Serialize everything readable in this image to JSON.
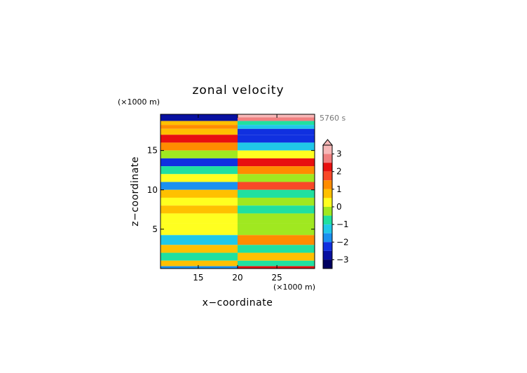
{
  "chart_data": {
    "type": "heatmap",
    "title": "zonal velocity",
    "xlabel": "x−coordinate",
    "ylabel": "z−coordinate",
    "x_unit_label": "(×1000 m)",
    "y_unit_label": "(×1000 m)",
    "time_label": "5760 s",
    "xlim": [
      10.2,
      29.8
    ],
    "ylim": [
      0,
      19.6
    ],
    "x_ticks": [
      15,
      20,
      25
    ],
    "y_ticks": [
      5,
      10,
      15
    ],
    "x_tick_labels": [
      "15",
      "20",
      "25"
    ],
    "y_tick_labels": [
      "5",
      "10",
      "15"
    ],
    "colorbar": {
      "tick_labels": [
        "3",
        "2",
        "1",
        "0",
        "−1",
        "−2",
        "−3"
      ],
      "tick_values": [
        3,
        2,
        1,
        0,
        -1,
        -2,
        -3
      ],
      "range": [
        -3.5,
        3.5
      ],
      "levels": [
        {
          "min": 3.0,
          "max": 3.5,
          "color": "#f7b8b8"
        },
        {
          "min": 2.5,
          "max": 3.0,
          "color": "#f08080"
        },
        {
          "min": 2.0,
          "max": 2.5,
          "color": "#e81010"
        },
        {
          "min": 1.5,
          "max": 2.0,
          "color": "#f84828"
        },
        {
          "min": 1.0,
          "max": 1.5,
          "color": "#ff8c00"
        },
        {
          "min": 0.5,
          "max": 1.0,
          "color": "#ffc000"
        },
        {
          "min": 0.0,
          "max": 0.5,
          "color": "#ffff20"
        },
        {
          "min": -0.5,
          "max": 0.0,
          "color": "#a0e820"
        },
        {
          "min": -1.0,
          "max": -0.5,
          "color": "#20e0a0"
        },
        {
          "min": -1.5,
          "max": -1.0,
          "color": "#20c8e8"
        },
        {
          "min": -2.0,
          "max": -1.5,
          "color": "#1a90f0"
        },
        {
          "min": -2.5,
          "max": -2.0,
          "color": "#1030e0"
        },
        {
          "min": -3.0,
          "max": -2.5,
          "color": "#0810a0"
        },
        {
          "min": -3.5,
          "max": -3.0,
          "color": "#000060"
        }
      ]
    },
    "field": {
      "rows_top_to_bottom": [
        {
          "z": 19.4,
          "left": -3.0,
          "right": 3.0
        },
        {
          "z": 19.0,
          "left": -2.6,
          "right": 2.6
        },
        {
          "z": 18.5,
          "left": 0.6,
          "right": -0.6
        },
        {
          "z": 18.0,
          "left": 1.4,
          "right": -1.4
        },
        {
          "z": 17.5,
          "left": 0.8,
          "right": -2.4
        },
        {
          "z": 16.5,
          "left": 2.4,
          "right": -2.4
        },
        {
          "z": 15.5,
          "left": 1.2,
          "right": -1.2
        },
        {
          "z": 14.5,
          "left": -0.3,
          "right": 0.3
        },
        {
          "z": 13.5,
          "left": -2.2,
          "right": 2.2
        },
        {
          "z": 12.5,
          "left": -0.8,
          "right": 1.0
        },
        {
          "z": 11.5,
          "left": 0.2,
          "right": -0.2
        },
        {
          "z": 10.5,
          "left": -1.6,
          "right": 1.6
        },
        {
          "z": 9.5,
          "left": 0.7,
          "right": -0.7
        },
        {
          "z": 8.5,
          "left": 0.4,
          "right": -0.4
        },
        {
          "z": 7.5,
          "left": 0.9,
          "right": -0.9
        },
        {
          "z": 6.5,
          "left": 0.3,
          "right": -0.3
        },
        {
          "z": 5.0,
          "left": 0.2,
          "right": -0.2
        },
        {
          "z": 3.5,
          "left": -1.2,
          "right": 1.2
        },
        {
          "z": 2.5,
          "left": 0.8,
          "right": -0.8
        },
        {
          "z": 1.5,
          "left": -0.9,
          "right": 0.9
        },
        {
          "z": 0.5,
          "left": 0.6,
          "right": -0.6
        },
        {
          "z": 0.1,
          "left": -2.0,
          "right": 2.0
        }
      ]
    }
  }
}
